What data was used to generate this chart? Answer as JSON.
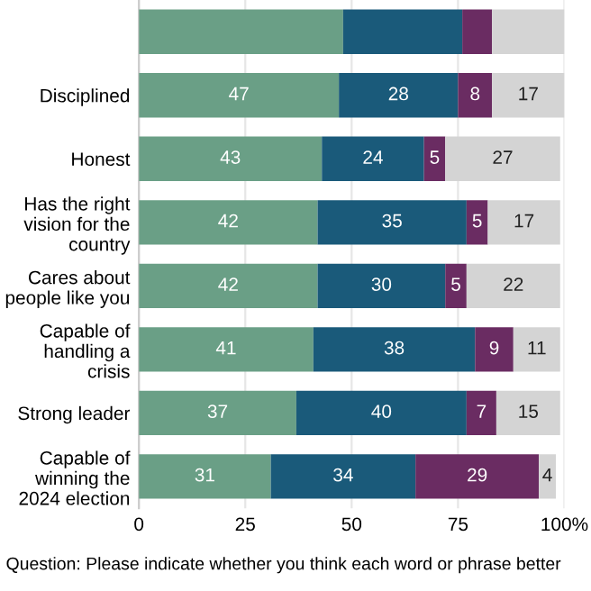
{
  "chart_data": {
    "type": "bar",
    "orientation": "horizontal",
    "stacked": true,
    "categories": [
      null,
      "Disciplined",
      "Honest",
      "Has the right vision for the country",
      "Cares about people like you",
      "Capable of handling a crisis",
      "Strong leader",
      "Capable of winning the 2024 election"
    ],
    "series": [
      {
        "color": "#6a9f86",
        "values": [
          48,
          47,
          43,
          42,
          42,
          41,
          37,
          31
        ],
        "value_labels": [
          null,
          "47",
          "43",
          "42",
          "42",
          "41",
          "37",
          "31"
        ]
      },
      {
        "color": "#1a5a7a",
        "values": [
          28,
          28,
          24,
          35,
          30,
          38,
          40,
          34
        ],
        "value_labels": [
          null,
          "28",
          "24",
          "35",
          "30",
          "38",
          "40",
          "34"
        ]
      },
      {
        "color": "#6a2c62",
        "values": [
          7,
          8,
          5,
          5,
          5,
          9,
          7,
          29
        ],
        "value_labels": [
          null,
          "8",
          "5",
          "5",
          "5",
          "9",
          "7",
          "29"
        ]
      },
      {
        "color": "#d4d4d4",
        "values": [
          17,
          17,
          27,
          17,
          22,
          11,
          15,
          4
        ],
        "value_labels": [
          null,
          "17",
          "27",
          "17",
          "22",
          "11",
          "15",
          "4"
        ]
      }
    ],
    "xlim": [
      0,
      100
    ],
    "xticks": [
      0,
      25,
      50,
      75,
      {
        "value": 100,
        "label": "100%"
      }
    ],
    "grid": "x",
    "annotations": [
      "Question: Please indicate whether you think each word or phrase better"
    ]
  }
}
